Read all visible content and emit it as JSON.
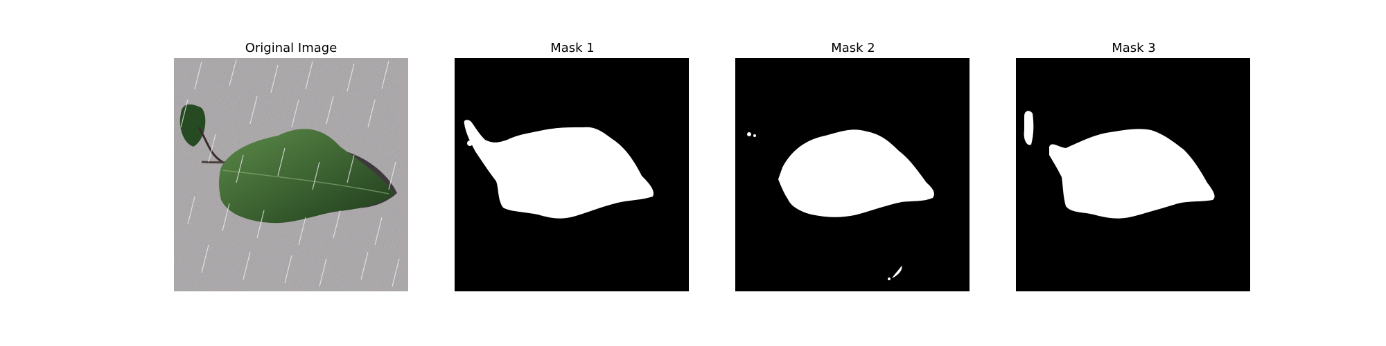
{
  "figure": {
    "panels": [
      {
        "title": "Original Image",
        "kind": "photo"
      },
      {
        "title": "Mask 1",
        "kind": "mask"
      },
      {
        "title": "Mask 2",
        "kind": "mask"
      },
      {
        "title": "Mask 3",
        "kind": "mask"
      }
    ]
  },
  "colors": {
    "mask_background": "#000000",
    "mask_foreground": "#ffffff",
    "photo_background": "#a7a3a6",
    "leaf_dark": "#1f3a1c",
    "leaf_mid": "#3d6432",
    "leaf_light": "#5c8a49",
    "rain_streak": "#f2f2f2"
  }
}
